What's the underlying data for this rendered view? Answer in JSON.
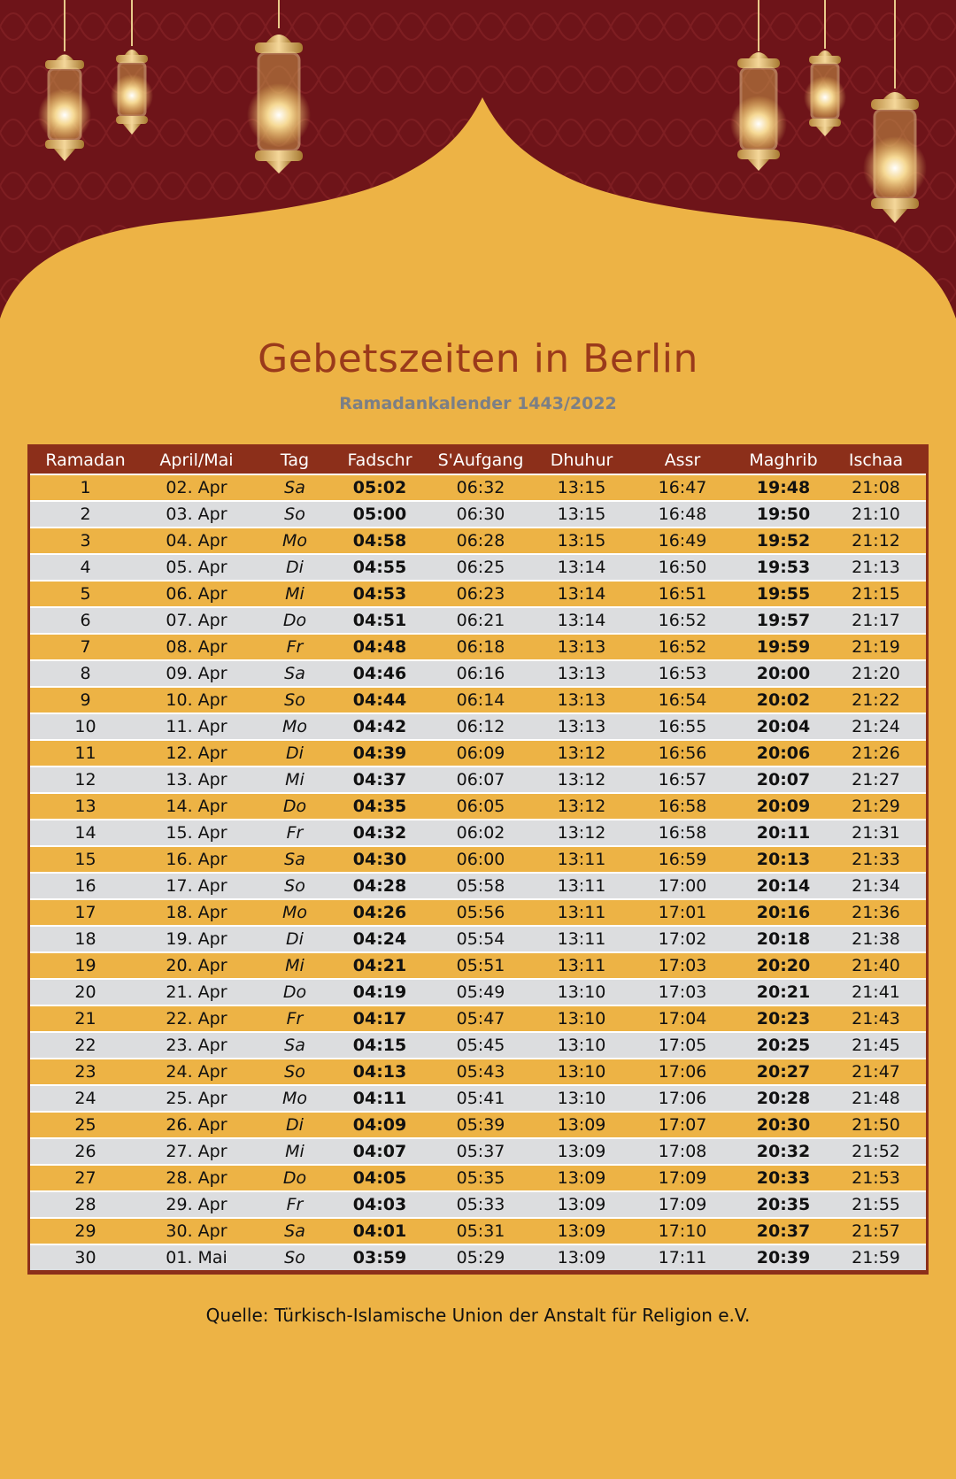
{
  "colors": {
    "background": "#EDB345",
    "header_dark": "#6E1419",
    "table_header": "#8C2F1A",
    "title": "#9A3A1B",
    "row_alt": "#DCDDDF"
  },
  "title": "Gebetszeiten in Berlin",
  "subtitle": "Ramadankalender 1443/2022",
  "columns": [
    "Ramadan",
    "April/Mai",
    "Tag",
    "Fadschr",
    "S'Aufgang",
    "Dhuhur",
    "Assr",
    "Maghrib",
    "Ischaa"
  ],
  "rows": [
    [
      "1",
      "02. Apr",
      "Sa",
      "05:02",
      "06:32",
      "13:15",
      "16:47",
      "19:48",
      "21:08"
    ],
    [
      "2",
      "03. Apr",
      "So",
      "05:00",
      "06:30",
      "13:15",
      "16:48",
      "19:50",
      "21:10"
    ],
    [
      "3",
      "04. Apr",
      "Mo",
      "04:58",
      "06:28",
      "13:15",
      "16:49",
      "19:52",
      "21:12"
    ],
    [
      "4",
      "05. Apr",
      "Di",
      "04:55",
      "06:25",
      "13:14",
      "16:50",
      "19:53",
      "21:13"
    ],
    [
      "5",
      "06. Apr",
      "Mi",
      "04:53",
      "06:23",
      "13:14",
      "16:51",
      "19:55",
      "21:15"
    ],
    [
      "6",
      "07. Apr",
      "Do",
      "04:51",
      "06:21",
      "13:14",
      "16:52",
      "19:57",
      "21:17"
    ],
    [
      "7",
      "08. Apr",
      "Fr",
      "04:48",
      "06:18",
      "13:13",
      "16:52",
      "19:59",
      "21:19"
    ],
    [
      "8",
      "09. Apr",
      "Sa",
      "04:46",
      "06:16",
      "13:13",
      "16:53",
      "20:00",
      "21:20"
    ],
    [
      "9",
      "10. Apr",
      "So",
      "04:44",
      "06:14",
      "13:13",
      "16:54",
      "20:02",
      "21:22"
    ],
    [
      "10",
      "11. Apr",
      "Mo",
      "04:42",
      "06:12",
      "13:13",
      "16:55",
      "20:04",
      "21:24"
    ],
    [
      "11",
      "12. Apr",
      "Di",
      "04:39",
      "06:09",
      "13:12",
      "16:56",
      "20:06",
      "21:26"
    ],
    [
      "12",
      "13. Apr",
      "Mi",
      "04:37",
      "06:07",
      "13:12",
      "16:57",
      "20:07",
      "21:27"
    ],
    [
      "13",
      "14. Apr",
      "Do",
      "04:35",
      "06:05",
      "13:12",
      "16:58",
      "20:09",
      "21:29"
    ],
    [
      "14",
      "15. Apr",
      "Fr",
      "04:32",
      "06:02",
      "13:12",
      "16:58",
      "20:11",
      "21:31"
    ],
    [
      "15",
      "16. Apr",
      "Sa",
      "04:30",
      "06:00",
      "13:11",
      "16:59",
      "20:13",
      "21:33"
    ],
    [
      "16",
      "17. Apr",
      "So",
      "04:28",
      "05:58",
      "13:11",
      "17:00",
      "20:14",
      "21:34"
    ],
    [
      "17",
      "18. Apr",
      "Mo",
      "04:26",
      "05:56",
      "13:11",
      "17:01",
      "20:16",
      "21:36"
    ],
    [
      "18",
      "19. Apr",
      "Di",
      "04:24",
      "05:54",
      "13:11",
      "17:02",
      "20:18",
      "21:38"
    ],
    [
      "19",
      "20. Apr",
      "Mi",
      "04:21",
      "05:51",
      "13:11",
      "17:03",
      "20:20",
      "21:40"
    ],
    [
      "20",
      "21. Apr",
      "Do",
      "04:19",
      "05:49",
      "13:10",
      "17:03",
      "20:21",
      "21:41"
    ],
    [
      "21",
      "22. Apr",
      "Fr",
      "04:17",
      "05:47",
      "13:10",
      "17:04",
      "20:23",
      "21:43"
    ],
    [
      "22",
      "23. Apr",
      "Sa",
      "04:15",
      "05:45",
      "13:10",
      "17:05",
      "20:25",
      "21:45"
    ],
    [
      "23",
      "24. Apr",
      "So",
      "04:13",
      "05:43",
      "13:10",
      "17:06",
      "20:27",
      "21:47"
    ],
    [
      "24",
      "25. Apr",
      "Mo",
      "04:11",
      "05:41",
      "13:10",
      "17:06",
      "20:28",
      "21:48"
    ],
    [
      "25",
      "26. Apr",
      "Di",
      "04:09",
      "05:39",
      "13:09",
      "17:07",
      "20:30",
      "21:50"
    ],
    [
      "26",
      "27. Apr",
      "Mi",
      "04:07",
      "05:37",
      "13:09",
      "17:08",
      "20:32",
      "21:52"
    ],
    [
      "27",
      "28. Apr",
      "Do",
      "04:05",
      "05:35",
      "13:09",
      "17:09",
      "20:33",
      "21:53"
    ],
    [
      "28",
      "29. Apr",
      "Fr",
      "04:03",
      "05:33",
      "13:09",
      "17:09",
      "20:35",
      "21:55"
    ],
    [
      "29",
      "30. Apr",
      "Sa",
      "04:01",
      "05:31",
      "13:09",
      "17:10",
      "20:37",
      "21:57"
    ],
    [
      "30",
      "01. Mai",
      "So",
      "03:59",
      "05:29",
      "13:09",
      "17:11",
      "20:39",
      "21:59"
    ]
  ],
  "source": "Quelle: Türkisch-Islamische Union der Anstalt für Religion e.V."
}
